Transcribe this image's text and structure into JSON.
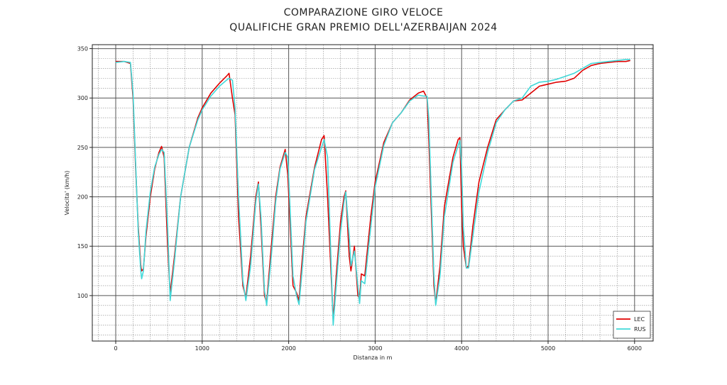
{
  "chart_data": {
    "type": "line",
    "title": "COMPARAZIONE GIRO VELOCE",
    "subtitle": "QUALIFICHE GRAN PREMIO DELL'AZERBAIJAN 2024",
    "x_label": "Distanza in m",
    "y_label": "Velocita' (km/h)",
    "xlim": [
      -271,
      6215
    ],
    "ylim": [
      54,
      354
    ],
    "xticks": [
      0,
      1000,
      2000,
      3000,
      4000,
      5000,
      6000
    ],
    "yticks": [
      100,
      150,
      200,
      250,
      300,
      350
    ],
    "x_minor_ticks": [
      -200,
      200,
      400,
      600,
      800,
      1200,
      1400,
      1600,
      1800,
      2200,
      2400,
      2600,
      2800,
      3200,
      3400,
      3600,
      3800,
      4200,
      4400,
      4600,
      4800,
      5200,
      5400,
      5600,
      5800,
      6200
    ],
    "y_minor_ticks": [
      60,
      70,
      80,
      90,
      110,
      120,
      130,
      140,
      160,
      170,
      180,
      190,
      210,
      220,
      230,
      240,
      260,
      270,
      280,
      290,
      310,
      320,
      330,
      340
    ],
    "grid": true,
    "legend": "lower right",
    "x": [
      0,
      100,
      170,
      200,
      230,
      260,
      290,
      300,
      320,
      350,
      400,
      450,
      500,
      530,
      560,
      600,
      630,
      680,
      750,
      850,
      950,
      1000,
      1100,
      1200,
      1280,
      1310,
      1350,
      1380,
      1420,
      1470,
      1505,
      1560,
      1620,
      1650,
      1680,
      1720,
      1745,
      1800,
      1850,
      1900,
      1960,
      1990,
      2050,
      2090,
      2120,
      2150,
      2200,
      2300,
      2380,
      2410,
      2450,
      2515,
      2550,
      2600,
      2640,
      2660,
      2700,
      2720,
      2760,
      2800,
      2820,
      2840,
      2880,
      2950,
      3000,
      3100,
      3200,
      3300,
      3400,
      3500,
      3560,
      3600,
      3620,
      3680,
      3700,
      3750,
      3800,
      3900,
      3960,
      3980,
      4000,
      4020,
      4055,
      4080,
      4130,
      4200,
      4300,
      4400,
      4500,
      4600,
      4700,
      4800,
      4900,
      5000,
      5100,
      5200,
      5300,
      5400,
      5500,
      5600,
      5700,
      5800,
      5900,
      5950
    ],
    "series": [
      {
        "name": "LEC",
        "color": "#e00000",
        "values": [
          337,
          337,
          335,
          300,
          230,
          170,
          130,
          125,
          127,
          160,
          200,
          228,
          245,
          251,
          240,
          150,
          102,
          140,
          200,
          250,
          280,
          290,
          305,
          315,
          322,
          325,
          300,
          283,
          180,
          110,
          98,
          140,
          200,
          215,
          170,
          100,
          93,
          150,
          200,
          230,
          248,
          222,
          110,
          103,
          95,
          130,
          180,
          230,
          258,
          262,
          200,
          75,
          120,
          175,
          200,
          206,
          140,
          125,
          150,
          100,
          97,
          122,
          120,
          180,
          215,
          255,
          275,
          285,
          298,
          305,
          307,
          300,
          260,
          110,
          92,
          130,
          190,
          240,
          258,
          260,
          190,
          150,
          128,
          130,
          170,
          215,
          250,
          278,
          288,
          297,
          298,
          305,
          312,
          314,
          316,
          317,
          320,
          328,
          333,
          335,
          336,
          337,
          337,
          338
        ]
      },
      {
        "name": "RUS",
        "color": "#40d8d8",
        "values": [
          336,
          337,
          336,
          305,
          235,
          165,
          125,
          117,
          125,
          165,
          205,
          230,
          243,
          248,
          245,
          170,
          95,
          135,
          200,
          250,
          278,
          288,
          302,
          312,
          318,
          320,
          318,
          290,
          200,
          115,
          95,
          130,
          195,
          213,
          180,
          105,
          90,
          140,
          195,
          228,
          245,
          240,
          120,
          100,
          91,
          120,
          175,
          228,
          250,
          258,
          240,
          70,
          110,
          165,
          195,
          205,
          160,
          130,
          145,
          110,
          92,
          115,
          112,
          170,
          210,
          252,
          275,
          285,
          297,
          303,
          302,
          302,
          280,
          120,
          90,
          120,
          180,
          235,
          252,
          257,
          230,
          170,
          128,
          128,
          160,
          205,
          245,
          275,
          288,
          297,
          300,
          312,
          316,
          317,
          319,
          322,
          325,
          330,
          335,
          336,
          337,
          338,
          339,
          339
        ]
      }
    ]
  }
}
